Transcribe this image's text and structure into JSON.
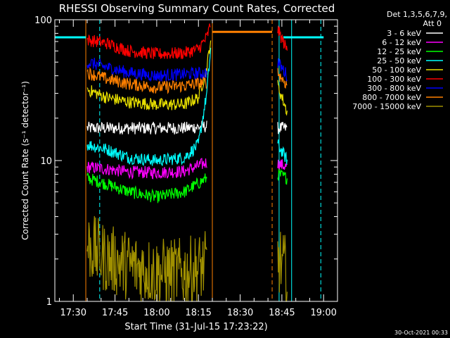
{
  "chart_data": {
    "type": "line",
    "title": "RHESSI Observing Summary Count Rates, Corrected",
    "xlabel": "Start Time (31-Jul-15 17:23:22)",
    "ylabel": "Corrected Count Rate (s⁻¹ detector⁻¹)",
    "xscale": "time",
    "yscale": "log",
    "xlim": [
      "17:23:22",
      "19:05:00"
    ],
    "ylim": [
      1,
      100
    ],
    "xticks": [
      "17:30",
      "17:45",
      "18:00",
      "18:15",
      "18:30",
      "18:45",
      "19:00"
    ],
    "yticks": [
      1,
      10,
      100
    ],
    "grid": false,
    "legend_position": "top-right",
    "legend_header": [
      "Det 1,3,5,6,7,9,",
      "Att 0"
    ],
    "timestamp": "30-Oct-2021 00:33",
    "series": [
      {
        "name": "3 - 6 keV",
        "color": "#ffffff",
        "points": [
          [
            "17:35:00",
            17
          ],
          [
            "17:42:00",
            17
          ],
          [
            "17:50:00",
            17
          ],
          [
            "18:00:00",
            17
          ],
          [
            "18:10:00",
            17
          ],
          [
            "18:18:00",
            17.5
          ],
          [
            "18:43:30",
            17
          ],
          [
            "18:47:00",
            17
          ]
        ]
      },
      {
        "name": "6 - 12 keV",
        "color": "#ff00ff",
        "points": [
          [
            "17:35:00",
            9
          ],
          [
            "17:42:00",
            8.7
          ],
          [
            "17:50:00",
            8.3
          ],
          [
            "18:00:00",
            8.2
          ],
          [
            "18:10:00",
            8.4
          ],
          [
            "18:18:00",
            9.7
          ],
          [
            "18:43:30",
            9.5
          ],
          [
            "18:47:00",
            9
          ]
        ]
      },
      {
        "name": "12 - 25 keV",
        "color": "#00ff00",
        "points": [
          [
            "17:35:00",
            7.5
          ],
          [
            "17:42:00",
            6.8
          ],
          [
            "17:50:00",
            6.0
          ],
          [
            "18:00:00",
            5.5
          ],
          [
            "18:10:00",
            6.0
          ],
          [
            "18:18:00",
            7.5
          ],
          [
            "18:43:30",
            8
          ],
          [
            "18:47:00",
            7.5
          ]
        ]
      },
      {
        "name": "25 - 50 keV",
        "color": "#00ffff",
        "points": [
          [
            "17:35:00",
            13
          ],
          [
            "17:42:00",
            12
          ],
          [
            "17:50:00",
            10.5
          ],
          [
            "18:00:00",
            10
          ],
          [
            "18:10:00",
            10.5
          ],
          [
            "18:15:00",
            13
          ],
          [
            "18:18:00",
            30
          ],
          [
            "18:19:30",
            65
          ],
          [
            "18:43:30",
            13
          ],
          [
            "18:47:00",
            10
          ]
        ]
      },
      {
        "name": "50 - 100 keV",
        "color": "#e8e000",
        "points": [
          [
            "17:35:00",
            32
          ],
          [
            "17:42:00",
            28
          ],
          [
            "17:50:00",
            26
          ],
          [
            "18:00:00",
            25
          ],
          [
            "18:10:00",
            25
          ],
          [
            "18:15:00",
            28
          ],
          [
            "18:18:00",
            45
          ],
          [
            "18:19:30",
            75
          ],
          [
            "18:43:30",
            34
          ],
          [
            "18:47:00",
            22
          ]
        ]
      },
      {
        "name": "100 - 300 keV",
        "color": "#ff0000",
        "points": [
          [
            "17:35:00",
            72
          ],
          [
            "17:42:00",
            68
          ],
          [
            "17:50:00",
            60
          ],
          [
            "18:00:00",
            57
          ],
          [
            "18:10:00",
            58
          ],
          [
            "18:15:00",
            62
          ],
          [
            "18:18:00",
            75
          ],
          [
            "18:19:30",
            95
          ],
          [
            "18:43:30",
            85
          ],
          [
            "18:47:00",
            60
          ]
        ]
      },
      {
        "name": "300 - 800 keV",
        "color": "#0000ff",
        "points": [
          [
            "17:35:00",
            50
          ],
          [
            "17:42:00",
            46
          ],
          [
            "17:50:00",
            42
          ],
          [
            "18:00:00",
            40
          ],
          [
            "18:10:00",
            41
          ],
          [
            "18:18:00",
            42
          ],
          [
            "18:43:30",
            50
          ],
          [
            "18:47:00",
            40
          ]
        ]
      },
      {
        "name": "800 - 7000 keV",
        "color": "#ff8000",
        "points": [
          [
            "17:35:00",
            42
          ],
          [
            "17:42:00",
            38
          ],
          [
            "17:50:00",
            35
          ],
          [
            "18:00:00",
            33
          ],
          [
            "18:10:00",
            34
          ],
          [
            "18:18:00",
            36
          ],
          [
            "18:43:30",
            42
          ],
          [
            "18:47:00",
            34
          ]
        ]
      },
      {
        "name": "7000 - 15000 keV",
        "color": "#a09000",
        "points": [
          [
            "17:35:00",
            2.5
          ],
          [
            "17:42:00",
            2.0
          ],
          [
            "17:50:00",
            1.8
          ],
          [
            "18:00:00",
            1.6
          ],
          [
            "18:10:00",
            1.6
          ],
          [
            "18:18:00",
            1.8
          ],
          [
            "18:43:30",
            2.0
          ],
          [
            "18:47:00",
            1.6
          ]
        ]
      }
    ],
    "saa_flag": {
      "color": "#00ffff",
      "value": 75,
      "intervals": [
        [
          "17:23:22",
          "17:34:30"
        ],
        [
          "18:45:30",
          "19:00:00"
        ]
      ]
    },
    "night_flag": {
      "color": "#ff8000",
      "value": 82,
      "intervals": [
        [
          "18:20:00",
          "18:41:30"
        ]
      ]
    },
    "markers": [
      {
        "time": "17:34:30",
        "color": "#ff8000",
        "style": "solid"
      },
      {
        "time": "17:39:30",
        "color": "#00ffff",
        "style": "dashed"
      },
      {
        "time": "18:20:00",
        "color": "#ff8000",
        "style": "solid"
      },
      {
        "time": "18:41:30",
        "color": "#ff8000",
        "style": "dashed"
      },
      {
        "time": "18:44:00",
        "color": "#00ffff",
        "style": "solid"
      },
      {
        "time": "18:48:30",
        "color": "#00ffff",
        "style": "solid"
      },
      {
        "time": "18:59:00",
        "color": "#00ffff",
        "style": "dashed"
      }
    ],
    "data_gap": [
      "18:20:00",
      "18:43:00"
    ]
  }
}
